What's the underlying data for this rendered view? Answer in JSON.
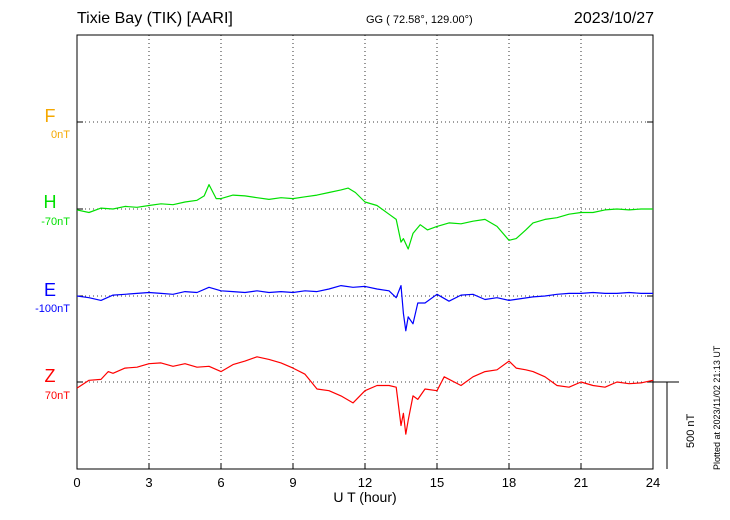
{
  "header": {
    "station": "Tixie Bay (TIK)  [AARI]",
    "coords": "GG ( 72.58°, 129.00°)",
    "date": "2023/10/27"
  },
  "plotted_note": "Plotted at 2023/11/02 21:13 UT",
  "colors": {
    "F": "#f5a800",
    "H": "#00e000",
    "E": "#0000ff",
    "Z": "#ff0000"
  },
  "chart_data": {
    "type": "line",
    "xlabel": "U T (hour)",
    "xlim": [
      0,
      24
    ],
    "x_ticks": [
      "0",
      "3",
      "6",
      "9",
      "12",
      "15",
      "18",
      "21",
      "24"
    ],
    "scale_bar": "500 nT",
    "series": [
      {
        "name": "F",
        "baseline": "0nT",
        "color": "#f5a800",
        "x": [],
        "values": []
      },
      {
        "name": "H",
        "baseline": "-70nT",
        "color": "#00e000",
        "x": [
          0,
          0.5,
          1,
          1.5,
          2,
          2.5,
          3,
          3.5,
          4,
          4.5,
          5,
          5.3,
          5.5,
          5.8,
          6,
          6.5,
          7,
          7.5,
          8,
          8.5,
          9,
          9.5,
          10,
          10.5,
          11,
          11.3,
          11.6,
          12,
          12.5,
          13,
          13.3,
          13.5,
          13.6,
          13.8,
          14,
          14.3,
          14.6,
          15,
          15.5,
          16,
          16.5,
          17,
          17.5,
          18,
          18.3,
          18.7,
          19,
          19.5,
          20,
          20.5,
          21,
          21.5,
          22,
          22.5,
          23,
          23.5,
          24
        ],
        "values": [
          -5,
          -20,
          5,
          0,
          15,
          10,
          20,
          30,
          25,
          40,
          50,
          75,
          140,
          60,
          60,
          80,
          75,
          65,
          55,
          65,
          60,
          70,
          80,
          95,
          110,
          120,
          95,
          40,
          20,
          -30,
          -60,
          -190,
          -170,
          -230,
          -140,
          -90,
          -120,
          -100,
          -80,
          -85,
          -70,
          -60,
          -100,
          -180,
          -170,
          -120,
          -80,
          -60,
          -50,
          -30,
          -20,
          -20,
          -5,
          0,
          -5,
          0,
          0
        ]
      },
      {
        "name": "E",
        "baseline": "-100nT",
        "color": "#0000ff",
        "x": [
          0,
          0.5,
          1,
          1.5,
          2,
          2.5,
          3,
          3.5,
          4,
          4.5,
          5,
          5.5,
          6,
          6.5,
          7,
          7.5,
          8,
          8.5,
          9,
          9.5,
          10,
          10.5,
          11,
          11.5,
          12,
          12.5,
          13,
          13.3,
          13.5,
          13.6,
          13.7,
          13.8,
          14,
          14.2,
          14.5,
          15,
          15.5,
          16,
          16.5,
          17,
          17.5,
          18,
          18.5,
          19,
          19.5,
          20,
          20.5,
          21,
          21.5,
          22,
          22.5,
          23,
          23.5,
          24
        ],
        "values": [
          0,
          -10,
          -25,
          5,
          10,
          15,
          20,
          15,
          10,
          25,
          20,
          50,
          30,
          25,
          20,
          30,
          20,
          25,
          20,
          30,
          25,
          40,
          60,
          50,
          55,
          40,
          30,
          -10,
          60,
          -100,
          -200,
          -120,
          -160,
          -40,
          -40,
          10,
          -30,
          5,
          10,
          -20,
          -10,
          -25,
          -15,
          -5,
          0,
          10,
          15,
          15,
          20,
          15,
          15,
          20,
          15,
          15
        ]
      },
      {
        "name": "Z",
        "baseline": "70nT",
        "color": "#ff0000",
        "x": [
          0,
          0.5,
          1,
          1.3,
          1.5,
          2,
          2.5,
          3,
          3.5,
          4,
          4.5,
          5,
          5.5,
          6,
          6.5,
          7,
          7.5,
          8,
          8.5,
          9,
          9.5,
          10,
          10.5,
          11,
          11.5,
          12,
          12.5,
          13,
          13.3,
          13.5,
          13.6,
          13.7,
          13.8,
          14,
          14.2,
          14.5,
          15,
          15.3,
          16,
          16.5,
          17,
          17.5,
          18,
          18.3,
          18.7,
          19,
          19.5,
          20,
          20.5,
          21,
          21.5,
          22,
          22.5,
          23,
          23.5,
          24
        ],
        "values": [
          -35,
          10,
          15,
          60,
          50,
          80,
          85,
          105,
          110,
          90,
          105,
          85,
          90,
          60,
          100,
          120,
          145,
          130,
          110,
          80,
          45,
          -40,
          -50,
          -80,
          -120,
          -50,
          -20,
          -20,
          -30,
          -250,
          -180,
          -300,
          -220,
          -80,
          -100,
          -40,
          -50,
          30,
          -20,
          30,
          60,
          70,
          120,
          80,
          70,
          60,
          30,
          -20,
          -30,
          0,
          -20,
          -30,
          0,
          -10,
          -5,
          10
        ]
      }
    ]
  }
}
